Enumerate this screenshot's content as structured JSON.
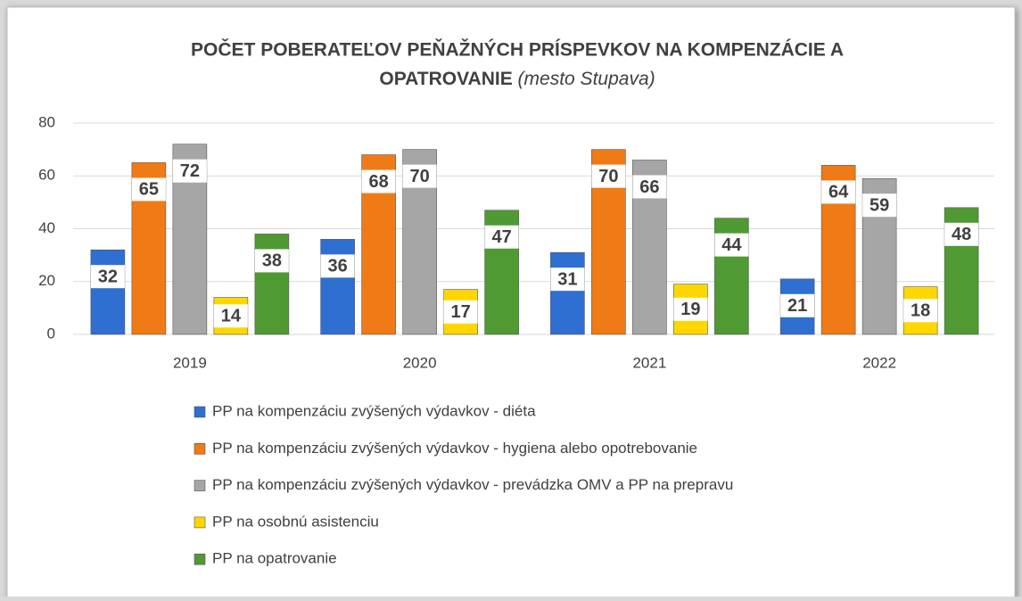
{
  "chart_data": {
    "type": "bar",
    "title": "POČET POBERATEĽOV PEŇAŽNÝCH PRÍSPEVKOV NA KOMPENZÁCIE  A OPATROVANIE",
    "subtitle": "(mesto Stupava)",
    "categories": [
      "2019",
      "2020",
      "2021",
      "2022"
    ],
    "series": [
      {
        "name": "PP na kompenzáciu zvýšených výdavkov - diéta",
        "color": "#2e6fd1",
        "values": [
          32,
          36,
          31,
          21
        ]
      },
      {
        "name": "PP na kompenzáciu zvýšených výdavkov - hygiena alebo opotrebovanie",
        "color": "#f07a16",
        "values": [
          65,
          68,
          70,
          64
        ]
      },
      {
        "name": "PP na kompenzáciu zvýšených výdavkov - prevádzka OMV a PP na prepravu",
        "color": "#a6a6a6",
        "values": [
          72,
          70,
          66,
          59
        ]
      },
      {
        "name": "PP na osobnú asistenciu",
        "color": "#ffd700",
        "values": [
          14,
          17,
          19,
          18
        ]
      },
      {
        "name": "PP na opatrovanie",
        "color": "#4f9a32",
        "values": [
          38,
          47,
          44,
          48
        ]
      }
    ],
    "ylim": [
      0,
      80
    ],
    "yticks": [
      0,
      20,
      40,
      60,
      80
    ],
    "grid": true,
    "legend": "bottom"
  }
}
